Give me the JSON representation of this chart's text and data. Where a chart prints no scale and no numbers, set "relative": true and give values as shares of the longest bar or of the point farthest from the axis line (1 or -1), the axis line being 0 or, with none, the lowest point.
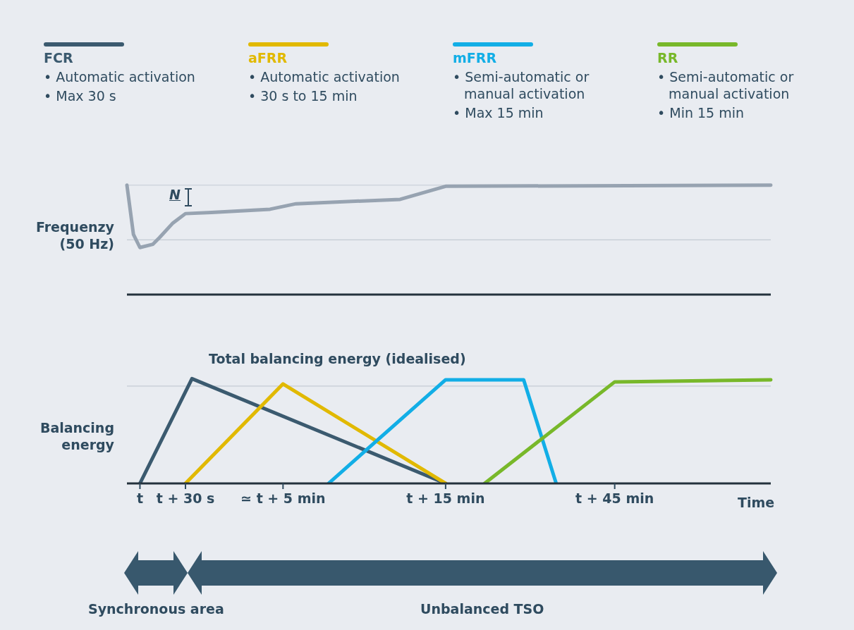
{
  "chart_data": [
    {
      "type": "line",
      "ylabel": "Frequenzy (50 Hz)",
      "relative": true,
      "categories": [
        null,
        null,
        null,
        null,
        null,
        null,
        null,
        null,
        null,
        null,
        null,
        null,
        null,
        null,
        null,
        null,
        null,
        null,
        null,
        null,
        null,
        null,
        null,
        null,
        null,
        null,
        null,
        null,
        null,
        null,
        null,
        null,
        null,
        null,
        null,
        null,
        null,
        null,
        null,
        null,
        null,
        null,
        null,
        null,
        null,
        null,
        null,
        null,
        null,
        null,
        null,
        null,
        null,
        null,
        null,
        null,
        null,
        null,
        null,
        null,
        null,
        null,
        null,
        null,
        null,
        null,
        null,
        null,
        null,
        null,
        null,
        null,
        null,
        null,
        null,
        null,
        null,
        null,
        null,
        null,
        null,
        null,
        null,
        null,
        null,
        null,
        null,
        null,
        null,
        null,
        null,
        null,
        null,
        null,
        null,
        null,
        null,
        null,
        null,
        null
      ],
      "tick_labels": false,
      "legend": false,
      "marker": "none",
      "line_style": "solid",
      "series": [
        {
          "color": "#97a3b1",
          "values": [
            1,
            0.55,
            0.43,
            null,
            0.46,
            0.52,
            null,
            0.65,
            null,
            0.74,
            null,
            null,
            null,
            0.75,
            null,
            null,
            null,
            null,
            null,
            null,
            null,
            null,
            0.78,
            null,
            null,
            null,
            0.83,
            null,
            null,
            null,
            null,
            null,
            null,
            null,
            null,
            null,
            null,
            null,
            null,
            null,
            null,
            null,
            0.87,
            null,
            null,
            null,
            null,
            null,
            null,
            0.99,
            null,
            null,
            null,
            null,
            null,
            null,
            null,
            null,
            null,
            null,
            null,
            null,
            null,
            null,
            null,
            null,
            null,
            null,
            null,
            null,
            null,
            null,
            null,
            null,
            null,
            null,
            null,
            null,
            null,
            null,
            null,
            null,
            null,
            null,
            null,
            null,
            null,
            null,
            null,
            null,
            null,
            null,
            null,
            null,
            null,
            null,
            null,
            null,
            null,
            1
          ]
        }
      ],
      "ref_lines": [
        {
          "axis": "y",
          "value": 0.5
        },
        {
          "axis": "y",
          "value": 1
        }
      ],
      "annotations": [
        "N"
      ]
    },
    {
      "type": "line",
      "title": "Total balancing energy (idealised)",
      "ylabel": "Balancing energy",
      "xlabel": "Time",
      "relative": true,
      "categories": [
        null,
        null,
        "t",
        null,
        null,
        null,
        null,
        null,
        null,
        "t + 30 s",
        null,
        null,
        null,
        null,
        null,
        null,
        null,
        null,
        null,
        null,
        null,
        null,
        null,
        null,
        "≃  t + 5 min",
        null,
        null,
        null,
        null,
        null,
        null,
        null,
        null,
        null,
        null,
        null,
        null,
        null,
        null,
        null,
        null,
        null,
        null,
        null,
        null,
        null,
        null,
        null,
        null,
        "t + 15 min",
        null,
        null,
        null,
        null,
        null,
        null,
        null,
        null,
        null,
        null,
        null,
        null,
        null,
        null,
        null,
        null,
        null,
        null,
        null,
        null,
        null,
        null,
        null,
        null,
        null,
        "t + 45 min",
        null,
        null,
        null,
        null,
        null,
        null,
        null,
        null,
        null,
        null,
        null,
        null,
        null,
        null,
        null,
        null,
        null,
        null,
        null,
        null,
        null,
        null,
        null,
        null
      ],
      "tick_labels": "x",
      "legend": "top",
      "marker": "none",
      "line_style": "solid",
      "series": [
        {
          "name": "FCR",
          "color": "#3b5a6f",
          "values": [
            null,
            null,
            0,
            null,
            null,
            null,
            null,
            null,
            null,
            null,
            1,
            null,
            null,
            null,
            null,
            null,
            null,
            null,
            null,
            null,
            null,
            null,
            null,
            null,
            null,
            null,
            null,
            null,
            null,
            null,
            null,
            null,
            null,
            null,
            null,
            null,
            null,
            null,
            null,
            null,
            null,
            null,
            null,
            null,
            null,
            null,
            null,
            null,
            null,
            0,
            null,
            null,
            null,
            null,
            null,
            null,
            null,
            null,
            null,
            null,
            null,
            null,
            null,
            null,
            null,
            null,
            null,
            null,
            null,
            null,
            null,
            null,
            null,
            null,
            null,
            null,
            null,
            null,
            null,
            null,
            null,
            null,
            null,
            null,
            null,
            null,
            null,
            null,
            null,
            null,
            null,
            null,
            null,
            null,
            null,
            null,
            null,
            null,
            null,
            null
          ]
        },
        {
          "name": "aFRR",
          "color": "#e1b900",
          "values": [
            null,
            null,
            null,
            null,
            null,
            null,
            null,
            null,
            null,
            0,
            null,
            null,
            null,
            null,
            null,
            null,
            null,
            null,
            null,
            null,
            null,
            null,
            null,
            null,
            0.95,
            null,
            null,
            null,
            null,
            null,
            null,
            null,
            null,
            null,
            null,
            null,
            null,
            null,
            null,
            null,
            null,
            null,
            null,
            null,
            null,
            null,
            null,
            null,
            null,
            0,
            null,
            null,
            null,
            null,
            null,
            null,
            null,
            null,
            null,
            null,
            null,
            null,
            null,
            null,
            null,
            null,
            null,
            null,
            null,
            null,
            null,
            null,
            null,
            null,
            null,
            null,
            null,
            null,
            null,
            null,
            null,
            null,
            null,
            null,
            null,
            null,
            null,
            null,
            null,
            null,
            null,
            null,
            null,
            null,
            null,
            null,
            null,
            null,
            null,
            null
          ]
        },
        {
          "name": "mFRR",
          "color": "#12aee6",
          "values": [
            null,
            null,
            null,
            null,
            null,
            null,
            null,
            null,
            null,
            null,
            null,
            null,
            null,
            null,
            null,
            null,
            null,
            null,
            null,
            null,
            null,
            null,
            null,
            null,
            null,
            null,
            null,
            null,
            null,
            null,
            null,
            0,
            null,
            null,
            null,
            null,
            null,
            null,
            null,
            null,
            null,
            null,
            null,
            null,
            null,
            null,
            null,
            null,
            null,
            0.99,
            null,
            null,
            null,
            null,
            null,
            null,
            null,
            null,
            null,
            null,
            null,
            0.99,
            null,
            null,
            null,
            null,
            0,
            null,
            null,
            null,
            null,
            null,
            null,
            null,
            null,
            null,
            null,
            null,
            null,
            null,
            null,
            null,
            null,
            null,
            null,
            null,
            null,
            null,
            null,
            null,
            null,
            null,
            null,
            null,
            null,
            null,
            null,
            null,
            null,
            null
          ]
        },
        {
          "name": "RR",
          "color": "#78b82a",
          "values": [
            null,
            null,
            null,
            null,
            null,
            null,
            null,
            null,
            null,
            null,
            null,
            null,
            null,
            null,
            null,
            null,
            null,
            null,
            null,
            null,
            null,
            null,
            null,
            null,
            null,
            null,
            null,
            null,
            null,
            null,
            null,
            null,
            null,
            null,
            null,
            null,
            null,
            null,
            null,
            null,
            null,
            null,
            null,
            null,
            null,
            null,
            null,
            null,
            null,
            null,
            null,
            null,
            null,
            null,
            null,
            0,
            null,
            null,
            null,
            null,
            null,
            null,
            null,
            null,
            null,
            null,
            null,
            null,
            null,
            null,
            null,
            null,
            null,
            null,
            null,
            0.97,
            null,
            null,
            null,
            null,
            null,
            null,
            null,
            null,
            null,
            null,
            null,
            null,
            null,
            null,
            null,
            null,
            null,
            null,
            null,
            null,
            null,
            null,
            null,
            0.99
          ]
        }
      ],
      "ref_lines": [
        {
          "axis": "y",
          "value": 0.93
        }
      ],
      "annotations": [
        "• Automatic activation",
        "• Max 30 s",
        "• Automatic activation",
        "• 30 s to 15 min",
        "• Semi-automatic or manual activation",
        "• Max 15 min",
        "• Semi-automatic or manual activation",
        "• Min 15 min",
        "Synchronous area",
        "Unbalanced TSO"
      ]
    }
  ]
}
